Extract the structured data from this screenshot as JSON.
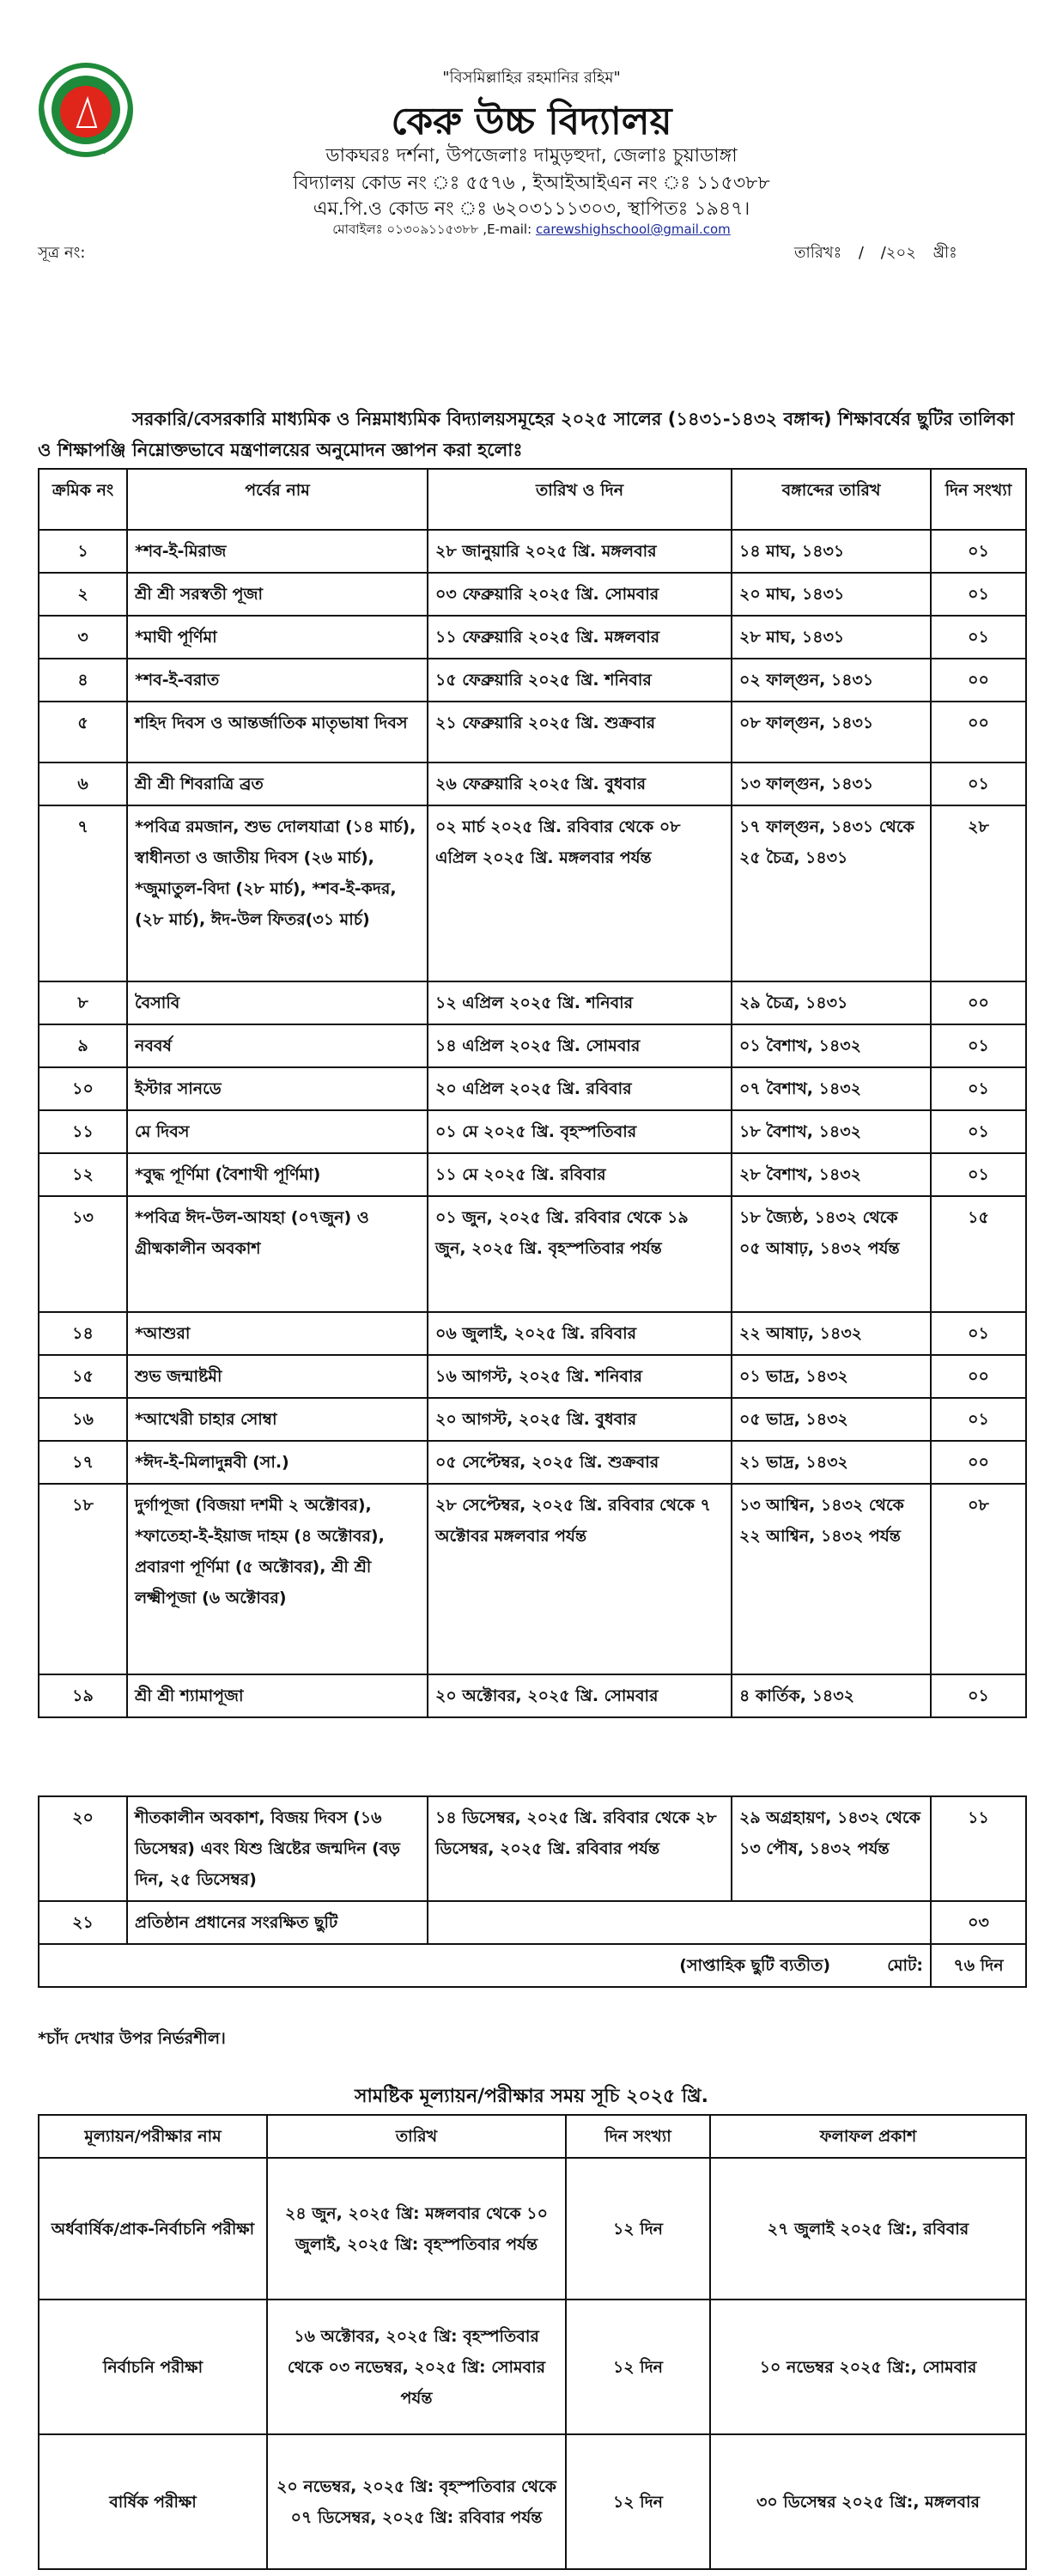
{
  "header": {
    "quote": "\"বিসমিল্লাহির রহমানির রহিম\"",
    "school_name": "কেরু উচ্চ বিদ্যালয়",
    "address": "ডাকঘরঃ দর্শনা, উপজেলাঃ দামুড়হুদা, জেলাঃ চুয়াডাঙ্গা",
    "codes": "বিদ্যালয় কোড নং ঃ ৫৫৭৬ , ইআইআইএন নং ঃ ১১৫৩৮৮",
    "mpo": "এম.পি.ও কোড নং ঃ ৬২০৩১১১৩০৩, স্থাপিতঃ ১৯৪৭।",
    "phone": "মোবাইলঃ ০১৩০৯১১৫৩৮৮ ,E-mail: ",
    "email": "carewshighschool@gmail.com",
    "ref_label": "সূত্র নং:",
    "date_label": "তারিখঃ    /    /২০২   খ্রীঃ",
    "logo_colors": {
      "ring": "#1f8a3a",
      "center": "#e0251b"
    }
  },
  "intro": "সরকারি/বেসরকারি মাধ্যমিক ও নিম্নমাধ্যমিক বিদ্যালয়সমূহের ২০২৫ সালের (১৪৩১-১৪৩২ বঙ্গাব্দ) শিক্ষাবর্ষের ছুটির তালিকা ও শিক্ষাপঞ্জি নিম্নোক্তভাবে মন্ত্রণালয়ের অনুমোদন জ্ঞাপন করা হলোঃ",
  "holiday_table": {
    "headers": [
      "ক্রমিক নং",
      "পর্বের নাম",
      "তারিখ ও দিন",
      "বঙ্গাব্দের তারিখ",
      "দিন সংখ্যা"
    ],
    "rows": [
      [
        "১",
        "*শব-ই-মিরাজ",
        "২৮ জানুয়ারি ২০২৫ খ্রি. মঙ্গলবার",
        "১৪ মাঘ, ১৪৩১",
        "০১"
      ],
      [
        "২",
        "শ্রী শ্রী সরস্বতী পূজা",
        "০৩ ফেব্রুয়ারি ২০২৫ খ্রি. সোমবার",
        "২০ মাঘ, ১৪৩১",
        "০১"
      ],
      [
        "৩",
        "*মাঘী পূর্ণিমা",
        "১১ ফেব্রুয়ারি ২০২৫ খ্রি. মঙ্গলবার",
        "২৮ মাঘ, ১৪৩১",
        "০১"
      ],
      [
        "৪",
        "*শব-ই-বরাত",
        "১৫ ফেব্রুয়ারি ২০২৫ খ্রি. শনিবার",
        "০২ ফাল্গুন, ১৪৩১",
        "০০"
      ],
      [
        "৫",
        "শহিদ দিবস ও আন্তর্জাতিক মাতৃভাষা দিবস",
        "২১ ফেব্রুয়ারি ২০২৫ খ্রি. শুক্রবার",
        "০৮ ফাল্গুন, ১৪৩১",
        "০০"
      ],
      [
        "৬",
        "শ্রী শ্রী শিবরাত্রি ব্রত",
        "২৬ ফেব্রুয়ারি ২০২৫ খ্রি. বুধবার",
        "১৩ ফাল্গুন, ১৪৩১",
        "০১"
      ],
      [
        "৭",
        "*পবিত্র রমজান, শুভ দোলযাত্রা (১৪ মার্চ), স্বাধীনতা ও জাতীয় দিবস (২৬ মার্চ), *জুমাতুল-বিদা (২৮ মার্চ), *শব-ই-কদর,(২৮ মার্চ), ঈদ-উল ফিতর(৩১ মার্চ)",
        "০২ মার্চ ২০২৫ খ্রি. রবিবার থেকে ০৮ এপ্রিল ২০২৫ খ্রি. মঙ্গলবার পর্যন্ত",
        "১৭ ফাল্গুন, ১৪৩১ থেকে ২৫ চৈত্র, ১৪৩১",
        "২৮"
      ],
      [
        "৮",
        "বৈসাবি",
        "১২ এপ্রিল ২০২৫ খ্রি. শনিবার",
        "২৯ চৈত্র, ১৪৩১",
        "০০"
      ],
      [
        "৯",
        "নববর্ষ",
        "১৪ এপ্রিল ২০২৫ খ্রি. সোমবার",
        "০১ বৈশাখ, ১৪৩২",
        "০১"
      ],
      [
        "১০",
        "ইস্টার সানডে",
        "২০ এপ্রিল ২০২৫ খ্রি. রবিবার",
        "০৭ বৈশাখ, ১৪৩২",
        "০১"
      ],
      [
        "১১",
        "মে দিবস",
        "০১ মে ২০২৫ খ্রি. বৃহস্পতিবার",
        "১৮ বৈশাখ, ১৪৩২",
        "০১"
      ],
      [
        "১২",
        "*বুদ্ধ পূর্ণিমা (বৈশাখী পূর্ণিমা)",
        "১১ মে ২০২৫ খ্রি. রবিবার",
        "২৮ বৈশাখ, ১৪৩২",
        "০১"
      ],
      [
        "১৩",
        "*পবিত্র ঈদ-উল-আযহা (০৭জুন) ও গ্রীষ্মকালীন অবকাশ",
        "০১ জুন, ২০২৫ খ্রি. রবিবার থেকে ১৯ জুন, ২০২৫ খ্রি. বৃহস্পতিবার পর্যন্ত",
        "১৮ জ্যৈষ্ঠ, ১৪৩২ থেকে ০৫ আষাঢ়, ১৪৩২ পর্যন্ত",
        "১৫"
      ],
      [
        "১৪",
        "*আশুরা",
        "০৬ জুলাই, ২০২৫ খ্রি. রবিবার",
        "২২ আষাঢ়, ১৪৩২",
        "০১"
      ],
      [
        "১৫",
        "শুভ জন্মাষ্টমী",
        "১৬ আগস্ট, ২০২৫ খ্রি. শনিবার",
        "০১ ভাদ্র, ১৪৩২",
        "০০"
      ],
      [
        "১৬",
        "*আখেরী চাহার সোম্বা",
        "২০ আগস্ট, ২০২৫ খ্রি. বুধবার",
        "০৫ ভাদ্র, ১৪৩২",
        "০১"
      ],
      [
        "১৭",
        "*ঈদ-ই-মিলাদুন্নবী (সা.)",
        "০৫ সেপ্টেম্বর, ২০২৫ খ্রি. শুক্রবার",
        "২১ ভাদ্র, ১৪৩২",
        "০০"
      ],
      [
        "১৮",
        "দুর্গাপূজা (বিজয়া দশমী ২ অক্টোবর), *ফাতেহা-ই-ইয়াজ দাহম (৪ অক্টোবর), প্রবারণা পূর্ণিমা (৫ অক্টোবর), শ্রী শ্রী লক্ষ্মীপূজা (৬ অক্টোবর)",
        "২৮ সেপ্টেম্বর, ২০২৫ খ্রি. রবিবার থেকে ৭ অক্টোবর মঙ্গলবার পর্যন্ত",
        "১৩ আশ্বিন, ১৪৩২ থেকে ২২ আশ্বিন, ১৪৩২ পর্যন্ত",
        "০৮"
      ],
      [
        "১৯",
        "শ্রী শ্রী শ্যামাপূজা",
        "২০ অক্টোবর, ২০২৫ খ্রি. সোমবার",
        "৪ কার্তিক, ১৪৩২",
        "০১"
      ]
    ]
  },
  "holiday_table_cont": {
    "rows": [
      [
        "২০",
        "শীতকালীন অবকাশ, বিজয় দিবস (১৬ ডিসেম্বর) এবং যিশু খ্রিষ্টের জন্মদিন (বড় দিন, ২৫ ডিসেম্বর)",
        "১৪ ডিসেম্বর, ২০২৫ খ্রি. রবিবার থেকে ২৮ ডিসেম্বর, ২০২৫ খ্রি. রবিবার পর্যন্ত",
        "২৯ অগ্রহায়ণ, ১৪৩২ থেকে ১৩ পৌষ, ১৪৩২ পর্যন্ত",
        "১১"
      ],
      [
        "২১",
        "প্রতিষ্ঠান প্রধানের সংরক্ষিত ছুটি",
        "",
        "",
        "০৩"
      ]
    ],
    "total_note": "(সাপ্তাহিক ছুটি ব্যতীত)",
    "total_label": "মোট:",
    "total_value": "৭৬ দিন"
  },
  "footnote": "*চাঁদ দেখার উপর নির্ভরশীল।",
  "exam_schedule": {
    "title": "সামষ্টিক মূল্যায়ন/পরীক্ষার সময় সূচি ২০২৫ খ্রি.",
    "headers": [
      "মূল্যায়ন/পরীক্ষার নাম",
      "তারিখ",
      "দিন সংখ্যা",
      "ফলাফল প্রকাশ"
    ],
    "rows": [
      [
        "অর্ধবার্ষিক/প্রাক-নির্বাচনি পরীক্ষা",
        "২৪ জুন, ২০২৫ খ্রি: মঙ্গলবার থেকে ১০ জুলাই, ২০২৫ খ্রি: বৃহস্পতিবার পর্যন্ত",
        "১২ দিন",
        "২৭ জুলাই ২০২৫ খ্রি:, রবিবার"
      ],
      [
        "নির্বাচনি পরীক্ষা",
        "১৬ অক্টোবর, ২০২৫ খ্রি: বৃহস্পতিবার থেকে ০৩ নভেম্বর, ২০২৫ খ্রি: সোমবার পর্যন্ত",
        "১২ দিন",
        "১০ নভেম্বর ২০২৫ খ্রি:, সোমবার"
      ],
      [
        "বার্ষিক পরীক্ষা",
        "২০ নভেম্বর, ২০২৫ খ্রি: বৃহস্পতিবার থেকে ০৭ ডিসেম্বর, ২০২৫ খ্রি: রবিবার পর্যন্ত",
        "১২ দিন",
        "৩০ ডিসেম্বর ২০২৫ খ্রি:, মঙ্গলবার"
      ]
    ]
  }
}
